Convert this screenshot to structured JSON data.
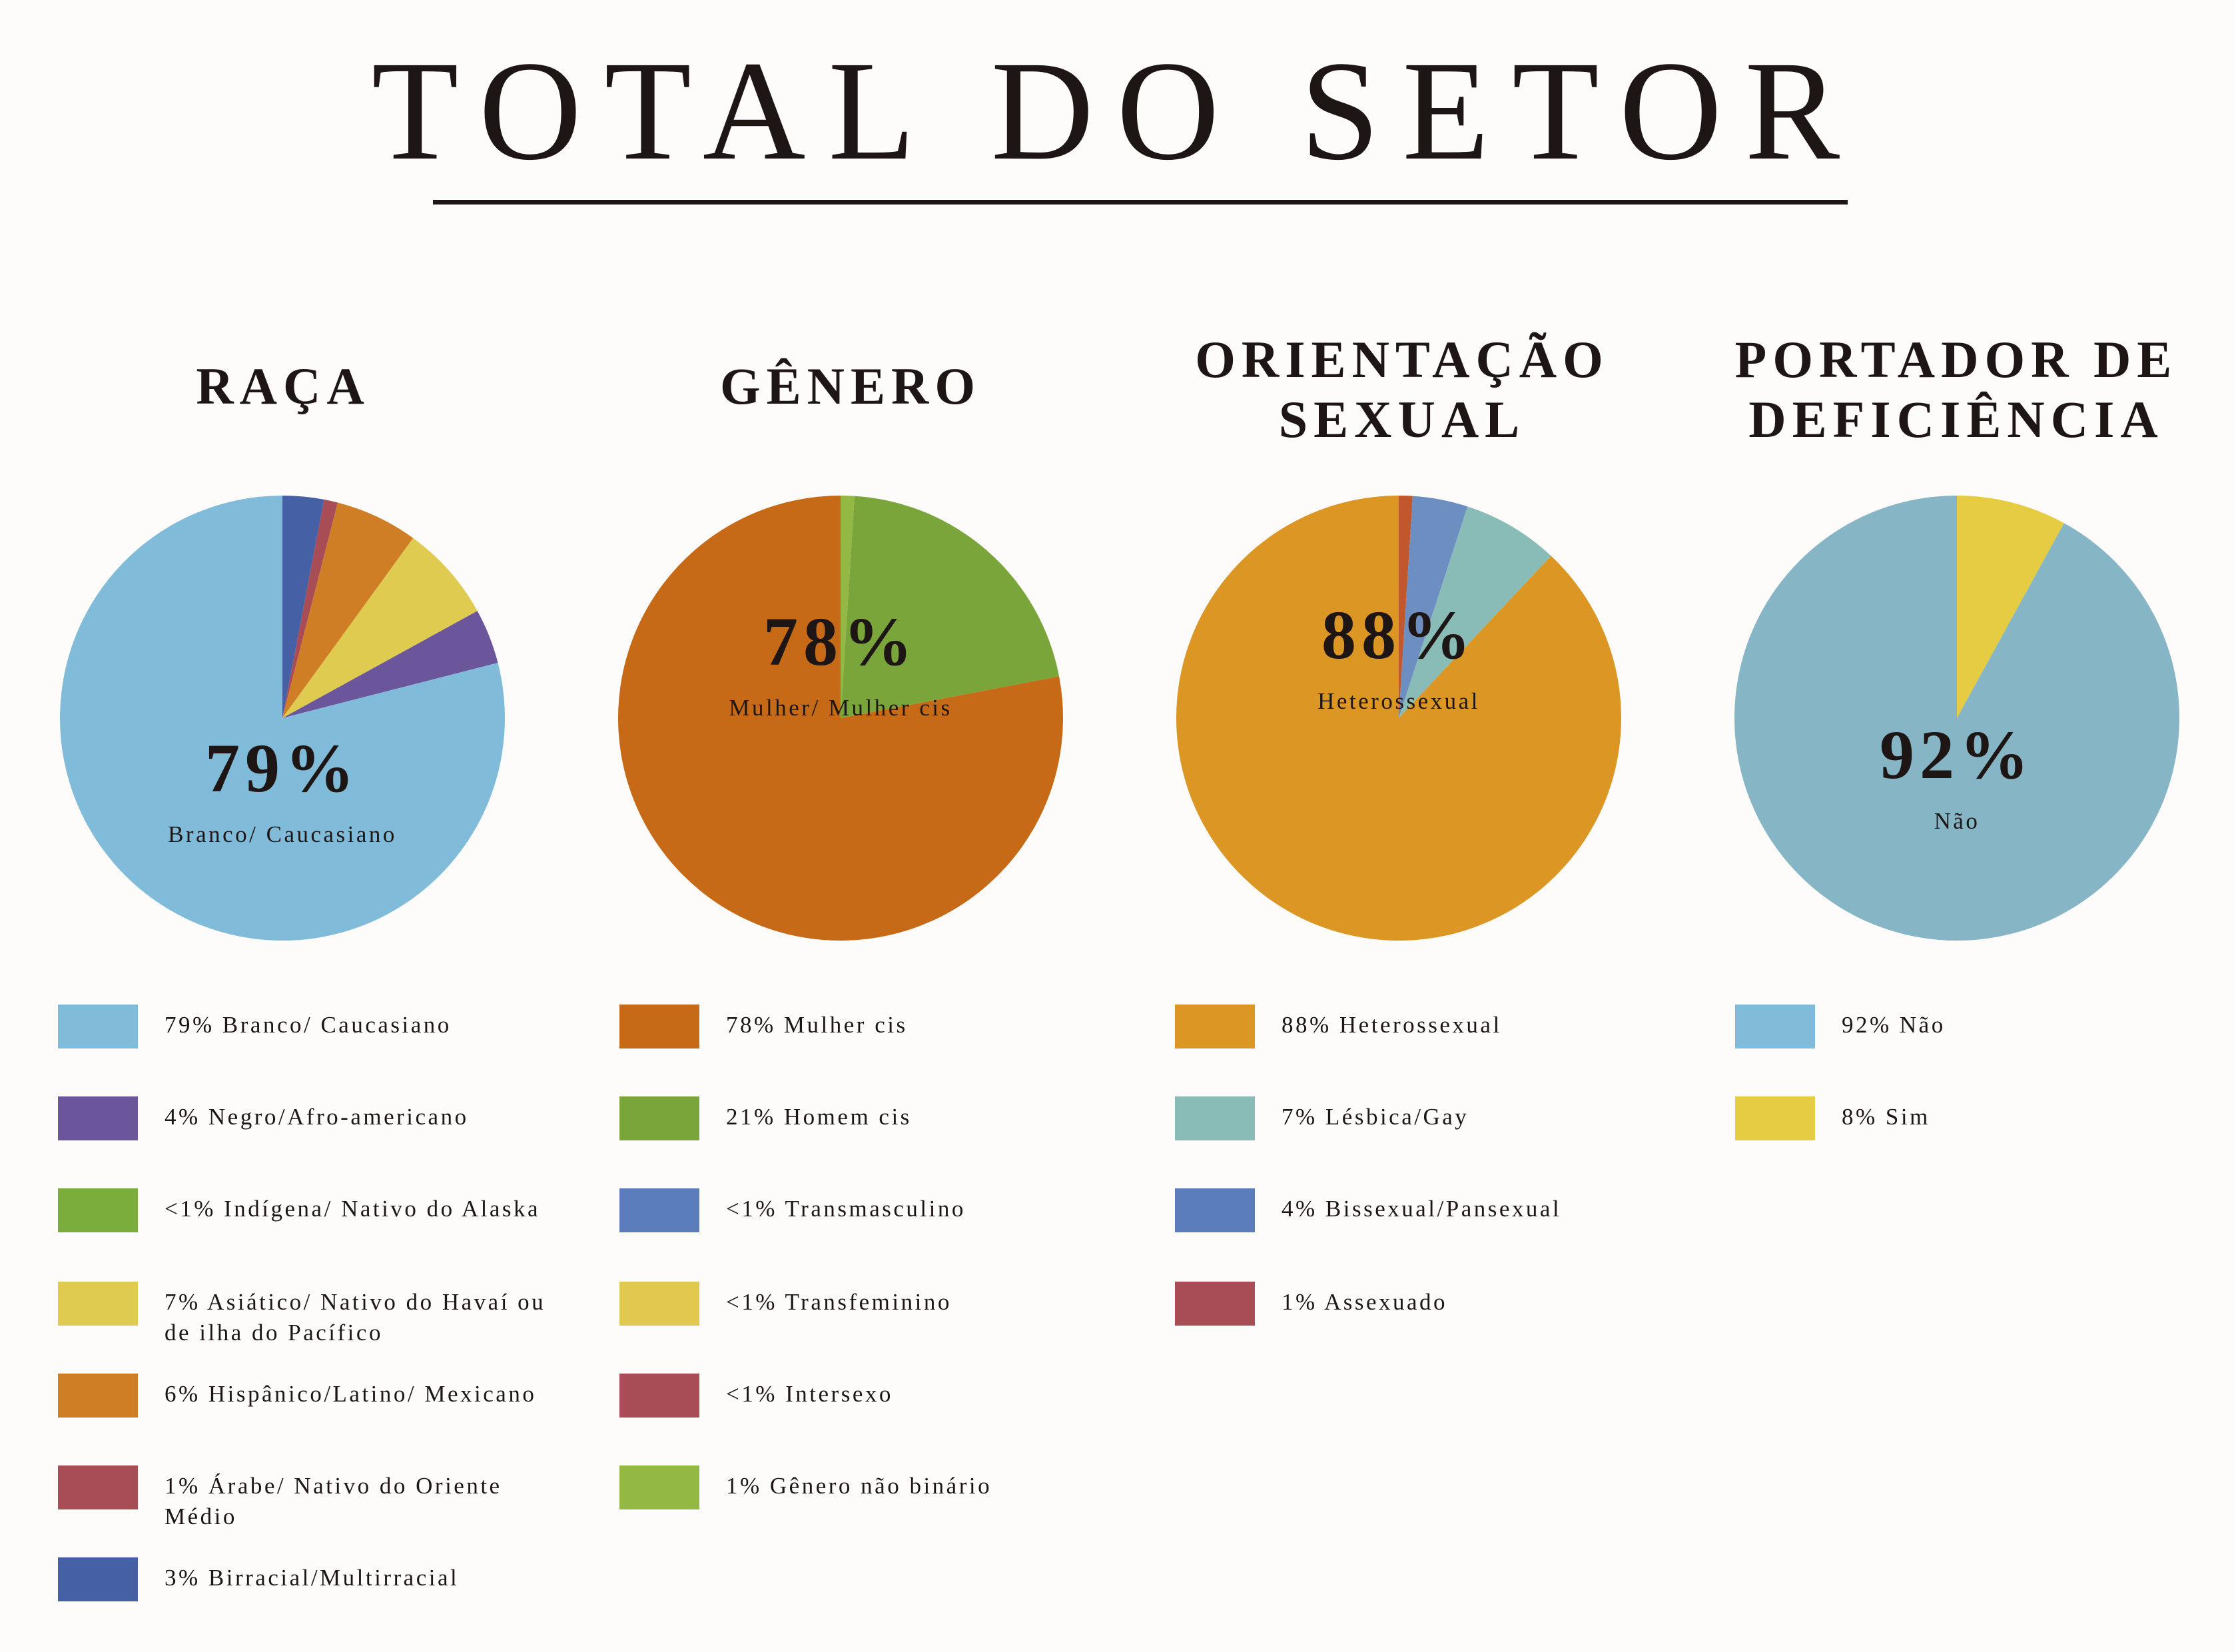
{
  "title": "TOTAL DO SETOR",
  "chart_data": [
    {
      "type": "pie",
      "title": "RAÇA",
      "center_value": "79%",
      "center_label": "Branco/ Caucasiano",
      "slices": [
        {
          "label": "79% Branco/ Caucasiano",
          "value": 79,
          "color": "#80bcd9",
          "legend_color": "#80bcd9"
        },
        {
          "label": "4% Negro/Afro-americano",
          "value": 4,
          "color": "#6b559b",
          "legend_color": "#6b559b"
        },
        {
          "label": "<1% Indígena/ Nativo do Alaska",
          "value": 0,
          "color": "#7aad3c",
          "legend_color": "#7aad3c"
        },
        {
          "label": "7% Asiático/ Nativo do Havaí ou de ilha do Pacífico",
          "value": 7,
          "color": "#dfcb4f",
          "legend_color": "#dfcb4f"
        },
        {
          "label": "6% Hispânico/Latino/ Mexicano",
          "value": 6,
          "color": "#cf7e25",
          "legend_color": "#cf7e25"
        },
        {
          "label": "1% Árabe/ Nativo do Oriente Médio",
          "value": 1,
          "color": "#a84d55",
          "legend_color": "#a84d55"
        },
        {
          "label": "3% Birracial/Multirracial",
          "value": 3,
          "color": "#4660a6",
          "legend_color": "#4660a6"
        }
      ]
    },
    {
      "type": "pie",
      "title": "GÊNERO",
      "center_value": "78%",
      "center_label": "Mulher/ Mulher cis",
      "slices": [
        {
          "label": "78% Mulher cis",
          "value": 78,
          "color": "#c66a17",
          "legend_color": "#c66a17"
        },
        {
          "label": "21% Homem cis",
          "value": 21,
          "color": "#79a53b",
          "legend_color": "#79a53b"
        },
        {
          "label": "<1% Transmasculino",
          "value": 0,
          "color": "#5c7dbb",
          "legend_color": "#5c7dbb"
        },
        {
          "label": "<1% Transfeminino",
          "value": 0,
          "color": "#e0c94e",
          "legend_color": "#e0c94e"
        },
        {
          "label": "<1% Intersexo",
          "value": 0,
          "color": "#a84d55",
          "legend_color": "#a84d55"
        },
        {
          "label": "1% Gênero não binário",
          "value": 1,
          "color": "#93b843",
          "legend_color": "#93b843"
        }
      ]
    },
    {
      "type": "pie",
      "title": "ORIENTAÇÃO\nSEXUAL",
      "center_value": "88%",
      "center_label": "Heterossexual",
      "slices": [
        {
          "label": "88% Heterossexual",
          "value": 88,
          "color": "#db9624",
          "legend_color": "#db9624"
        },
        {
          "label": "7% Lésbica/Gay",
          "value": 7,
          "color": "#89bbb7",
          "legend_color": "#89bbb7"
        },
        {
          "label": "4% Bissexual/Pansexual",
          "value": 4,
          "color": "#6c8ec0",
          "legend_color": "#5c7dbb"
        },
        {
          "label": "1% Assexuado",
          "value": 1,
          "color": "#c1582d",
          "legend_color": "#a84d55"
        }
      ]
    },
    {
      "type": "pie",
      "title": "PORTADOR DE\nDEFICIÊNCIA",
      "center_value": "92%",
      "center_label": "Não",
      "slices": [
        {
          "label": "92% Não",
          "value": 92,
          "color": "#86b5c6",
          "legend_color": "#80bcd9"
        },
        {
          "label": "8% Sim",
          "value": 8,
          "color": "#e6cc42",
          "legend_color": "#e6cc42"
        }
      ]
    }
  ]
}
